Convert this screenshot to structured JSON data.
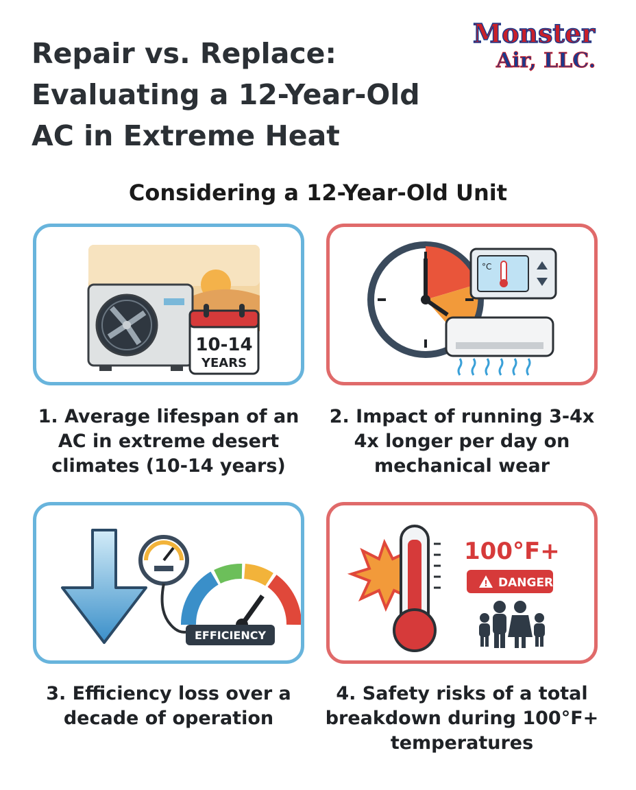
{
  "title_lines": [
    "Repair vs. Replace:",
    "Evaluating a 12-Year-Old",
    "AC in Extreme Heat"
  ],
  "logo": {
    "line1": "Monster",
    "line2": "Air, LLC."
  },
  "subtitle": "Considering a 12-Year-Old Unit",
  "cards": [
    {
      "icon": "ac-unit-calendar-icon",
      "badge_number": "10-14",
      "badge_unit": "YEARS",
      "caption_lines": [
        "1. Average lifespan of an",
        "AC in extreme desert",
        "climates (10-14 years)"
      ]
    },
    {
      "icon": "clock-thermostat-ac-icon",
      "thermostat_unit": "°C",
      "caption_lines": [
        "2. Impact of running 3-4x",
        "4x longer per day on",
        "mechanical wear"
      ]
    },
    {
      "icon": "efficiency-gauge-icon",
      "gauge_label": "EFFICIENCY",
      "caption_lines": [
        "3. Efficiency loss over a",
        "decade of operation"
      ]
    },
    {
      "icon": "thermometer-danger-family-icon",
      "temperature": "100°F+",
      "danger_label": "DANGER",
      "caption_lines": [
        "4. Safety risks of a total",
        "breakdown during 100°F+",
        "temperatures"
      ]
    }
  ],
  "colors": {
    "blue_border": "#68b4dc",
    "red_border": "#e06a6a",
    "title_text": "#2b3035",
    "danger_red": "#d63a3a"
  }
}
